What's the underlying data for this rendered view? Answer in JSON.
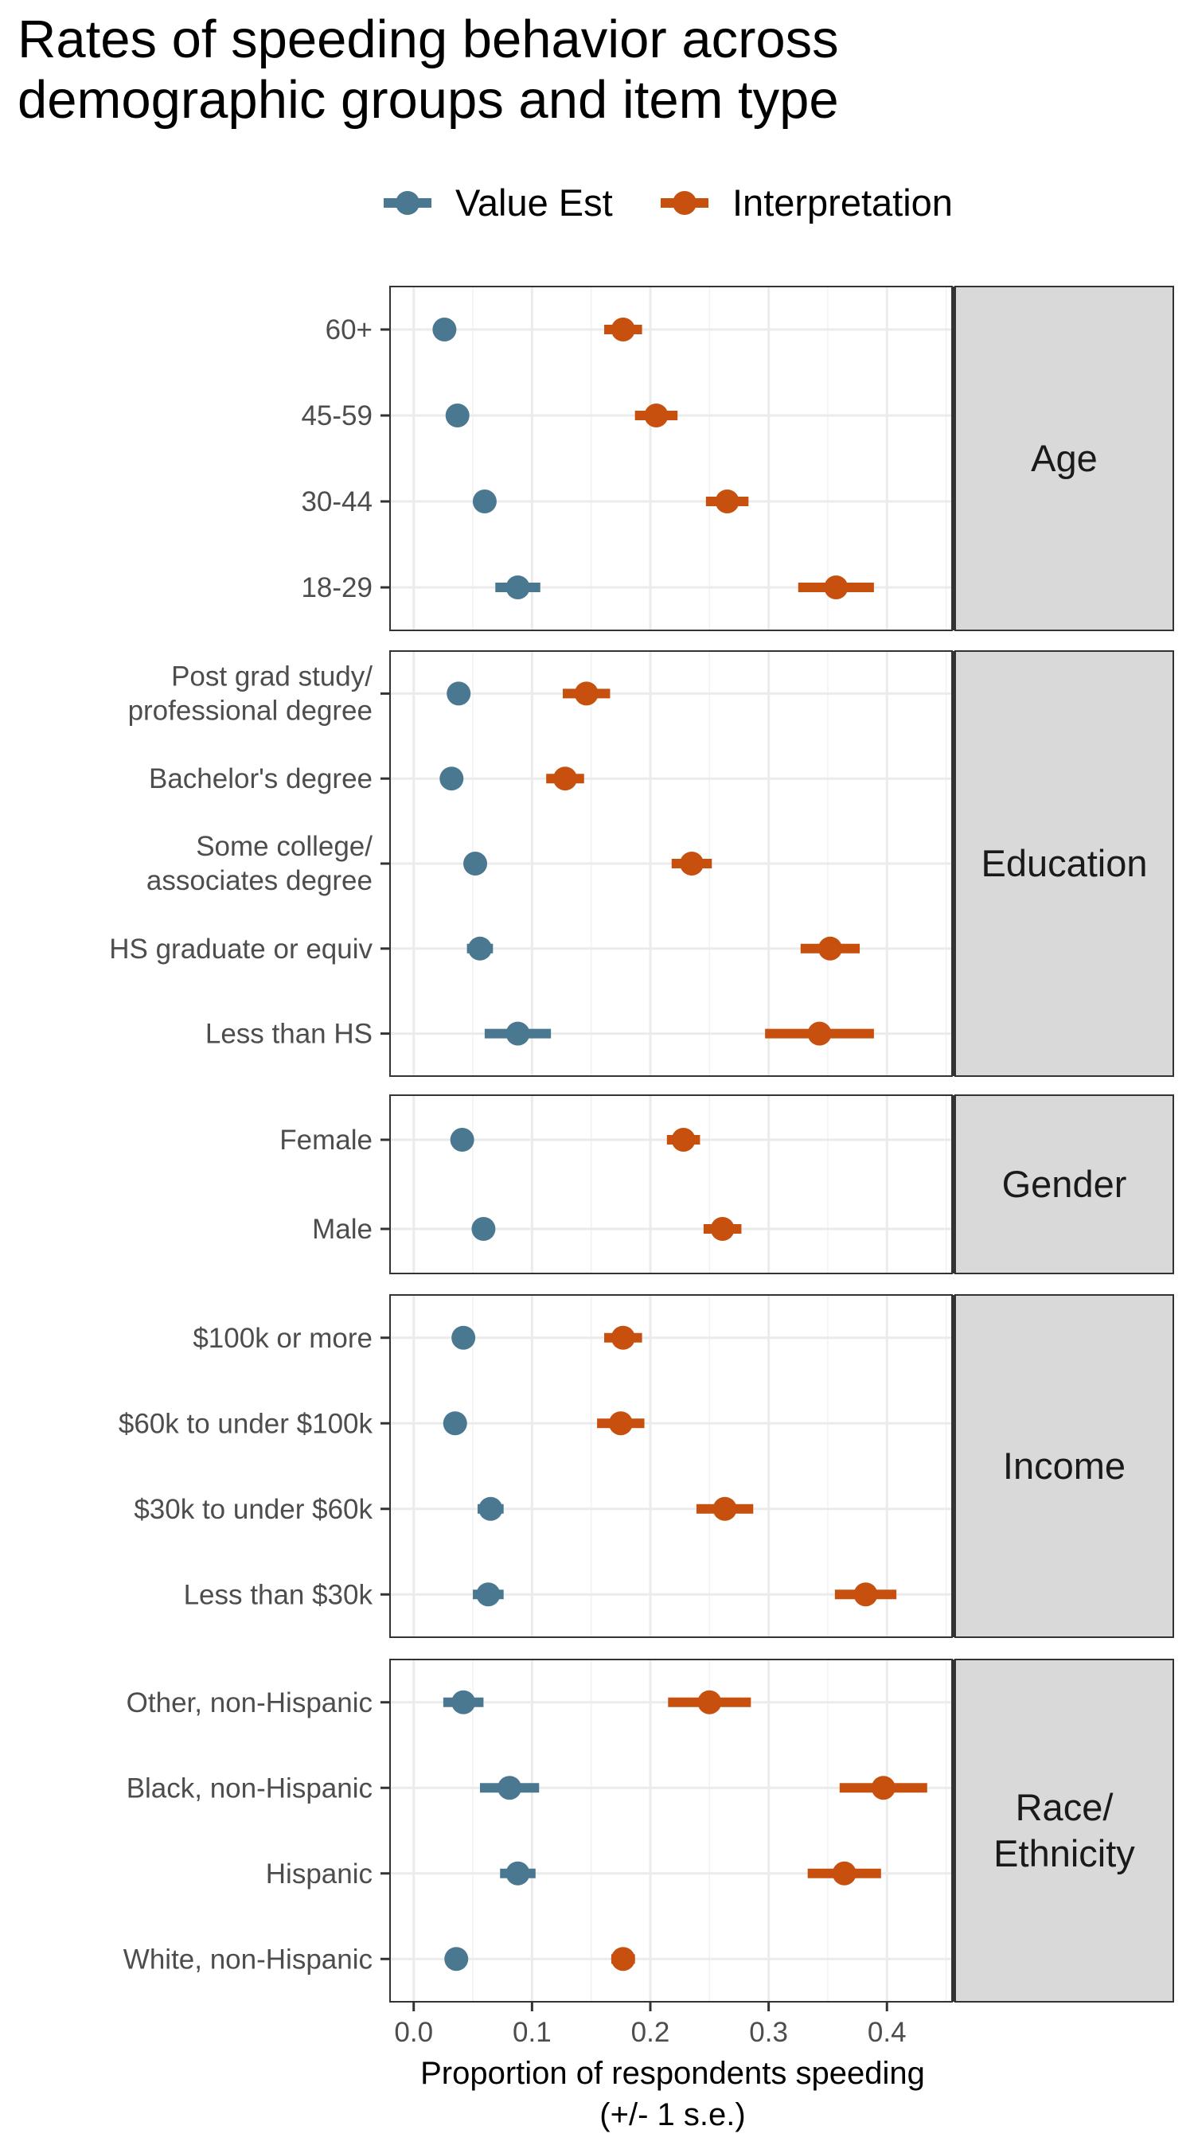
{
  "colors": {
    "value_est": "#4b7891",
    "interpretation": "#c8500f"
  },
  "chart_data": {
    "type": "dot-errorbar",
    "title": [
      "Rates of speeding behavior across",
      "demographic groups and item type"
    ],
    "xlabel": [
      "Proportion of respondents speeding",
      "(+/- 1 s.e.)"
    ],
    "ylabel": "",
    "xlim": [
      -0.02,
      0.455
    ],
    "xticks": [
      0.0,
      0.1,
      0.2,
      0.3,
      0.4
    ],
    "xtick_labels": [
      "0.0",
      "0.1",
      "0.2",
      "0.3",
      "0.4"
    ],
    "grid": true,
    "legend_position": "top",
    "series": [
      {
        "key": "value_est",
        "name": "Value Est",
        "color": "#4b7891"
      },
      {
        "key": "interpretation",
        "name": "Interpretation",
        "color": "#c8500f"
      }
    ],
    "panels": [
      {
        "label": [
          "Age"
        ],
        "rows": [
          {
            "label": [
              "60+"
            ],
            "value_est": [
              0.026,
              0.024,
              0.028
            ],
            "interpretation": [
              0.177,
              0.161,
              0.193
            ]
          },
          {
            "label": [
              "45-59"
            ],
            "value_est": [
              0.037,
              0.034,
              0.04
            ],
            "interpretation": [
              0.205,
              0.187,
              0.223
            ]
          },
          {
            "label": [
              "30-44"
            ],
            "value_est": [
              0.06,
              0.057,
              0.063
            ],
            "interpretation": [
              0.265,
              0.247,
              0.283
            ]
          },
          {
            "label": [
              "18-29"
            ],
            "value_est": [
              0.088,
              0.069,
              0.107
            ],
            "interpretation": [
              0.357,
              0.325,
              0.389
            ]
          }
        ]
      },
      {
        "label": [
          "Education"
        ],
        "rows": [
          {
            "label": [
              "Post grad study/",
              "professional degree"
            ],
            "value_est": [
              0.038,
              0.034,
              0.042
            ],
            "interpretation": [
              0.146,
              0.126,
              0.166
            ]
          },
          {
            "label": [
              "Bachelor's degree"
            ],
            "value_est": [
              0.032,
              0.03,
              0.034
            ],
            "interpretation": [
              0.128,
              0.112,
              0.144
            ]
          },
          {
            "label": [
              "Some college/",
              "associates degree"
            ],
            "value_est": [
              0.052,
              0.049,
              0.055
            ],
            "interpretation": [
              0.235,
              0.218,
              0.252
            ]
          },
          {
            "label": [
              "HS graduate or equiv"
            ],
            "value_est": [
              0.056,
              0.045,
              0.067
            ],
            "interpretation": [
              0.352,
              0.327,
              0.377
            ]
          },
          {
            "label": [
              "Less than HS"
            ],
            "value_est": [
              0.088,
              0.06,
              0.116
            ],
            "interpretation": [
              0.343,
              0.297,
              0.389
            ]
          }
        ]
      },
      {
        "label": [
          "Gender"
        ],
        "rows": [
          {
            "label": [
              "Female"
            ],
            "value_est": [
              0.041,
              0.039,
              0.043
            ],
            "interpretation": [
              0.228,
              0.214,
              0.242
            ]
          },
          {
            "label": [
              "Male"
            ],
            "value_est": [
              0.059,
              0.056,
              0.062
            ],
            "interpretation": [
              0.261,
              0.245,
              0.277
            ]
          }
        ]
      },
      {
        "label": [
          "Income"
        ],
        "rows": [
          {
            "label": [
              "$100k or more"
            ],
            "value_est": [
              0.042,
              0.039,
              0.045
            ],
            "interpretation": [
              0.177,
              0.161,
              0.193
            ]
          },
          {
            "label": [
              "$60k to under $100k"
            ],
            "value_est": [
              0.035,
              0.032,
              0.038
            ],
            "interpretation": [
              0.175,
              0.155,
              0.195
            ]
          },
          {
            "label": [
              "$30k to under $60k"
            ],
            "value_est": [
              0.065,
              0.054,
              0.076
            ],
            "interpretation": [
              0.263,
              0.239,
              0.287
            ]
          },
          {
            "label": [
              "Less than $30k"
            ],
            "value_est": [
              0.063,
              0.05,
              0.076
            ],
            "interpretation": [
              0.382,
              0.356,
              0.408
            ]
          }
        ]
      },
      {
        "label": [
          "Race/",
          "Ethnicity"
        ],
        "rows": [
          {
            "label": [
              "Other, non-Hispanic"
            ],
            "value_est": [
              0.042,
              0.025,
              0.059
            ],
            "interpretation": [
              0.25,
              0.215,
              0.285
            ]
          },
          {
            "label": [
              "Black, non-Hispanic"
            ],
            "value_est": [
              0.081,
              0.056,
              0.106
            ],
            "interpretation": [
              0.397,
              0.36,
              0.434
            ]
          },
          {
            "label": [
              "Hispanic"
            ],
            "value_est": [
              0.088,
              0.073,
              0.103
            ],
            "interpretation": [
              0.364,
              0.333,
              0.395
            ]
          },
          {
            "label": [
              "White, non-Hispanic"
            ],
            "value_est": [
              0.036,
              0.034,
              0.038
            ],
            "interpretation": [
              0.177,
              0.167,
              0.187
            ]
          }
        ]
      }
    ]
  }
}
